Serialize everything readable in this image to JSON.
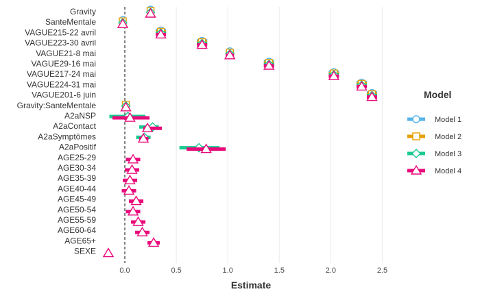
{
  "chart_data": {
    "type": "dot-whisker",
    "xlabel": "Estimate",
    "xlim": [
      -0.2,
      2.65
    ],
    "xticks": [
      0.0,
      0.5,
      1.0,
      1.5,
      2.0,
      2.5
    ],
    "xtick_labels": [
      "0.0",
      "0.5",
      "1.0",
      "1.5",
      "2.0",
      "2.5"
    ],
    "reference_line": 0,
    "legend": {
      "title": "Model",
      "position": "right"
    },
    "terms": [
      "Gravity",
      "SanteMentale",
      "VAGUE215-22 avril",
      "VAGUE223-30 avril",
      "VAGUE21-8 mai",
      "VAGUE29-16 mai",
      "VAGUE217-24 mai",
      "VAGUE224-31 mai",
      "VAGUE201-6 juin",
      "Gravity:SanteMentale",
      "A2aNSP",
      "A2aContact",
      "A2aSymptômes",
      "A2aPositif",
      "AGE25-29",
      "AGE30-34",
      "AGE35-39",
      "AGE40-44",
      "AGE45-49",
      "AGE50-54",
      "AGE55-59",
      "AGE60-64",
      "AGE65+",
      "SEXE"
    ],
    "series": [
      {
        "name": "Model 1",
        "color": "#56B4E9",
        "marker": "circle",
        "estimates": [
          0.25,
          -0.02,
          0.35,
          0.75,
          1.02,
          1.4,
          2.03,
          2.3,
          2.4,
          null,
          null,
          null,
          null,
          null,
          null,
          null,
          null,
          null,
          null,
          null,
          null,
          null,
          null,
          null
        ],
        "low": [
          0.23,
          -0.03,
          0.3,
          0.7,
          0.98,
          1.35,
          1.98,
          2.25,
          2.35,
          null,
          null,
          null,
          null,
          null,
          null,
          null,
          null,
          null,
          null,
          null,
          null,
          null,
          null,
          null
        ],
        "high": [
          0.27,
          -0.01,
          0.4,
          0.8,
          1.06,
          1.45,
          2.08,
          2.35,
          2.45,
          null,
          null,
          null,
          null,
          null,
          null,
          null,
          null,
          null,
          null,
          null,
          null,
          null,
          null,
          null
        ]
      },
      {
        "name": "Model 2",
        "color": "#E69F00",
        "marker": "square",
        "estimates": [
          0.25,
          -0.02,
          0.35,
          0.75,
          1.02,
          1.4,
          2.03,
          2.3,
          2.4,
          0.01,
          null,
          null,
          null,
          null,
          null,
          null,
          null,
          null,
          null,
          null,
          null,
          null,
          null,
          null
        ],
        "low": [
          0.23,
          -0.03,
          0.3,
          0.7,
          0.98,
          1.35,
          1.98,
          2.25,
          2.35,
          -0.01,
          null,
          null,
          null,
          null,
          null,
          null,
          null,
          null,
          null,
          null,
          null,
          null,
          null,
          null
        ],
        "high": [
          0.27,
          -0.01,
          0.4,
          0.8,
          1.06,
          1.45,
          2.08,
          2.35,
          2.45,
          0.02,
          null,
          null,
          null,
          null,
          null,
          null,
          null,
          null,
          null,
          null,
          null,
          null,
          null,
          null
        ]
      },
      {
        "name": "Model 3",
        "color": "#1AC991",
        "marker": "diamond",
        "estimates": [
          0.25,
          -0.02,
          0.35,
          0.75,
          1.02,
          1.4,
          2.03,
          2.3,
          2.4,
          0.01,
          0.03,
          0.27,
          0.19,
          0.72,
          null,
          null,
          null,
          null,
          null,
          null,
          null,
          null,
          null,
          null
        ],
        "low": [
          0.23,
          -0.03,
          0.3,
          0.7,
          0.98,
          1.35,
          1.98,
          2.25,
          2.35,
          -0.01,
          -0.15,
          0.14,
          0.11,
          0.53,
          null,
          null,
          null,
          null,
          null,
          null,
          null,
          null,
          null,
          null
        ],
        "high": [
          0.27,
          -0.01,
          0.4,
          0.8,
          1.06,
          1.45,
          2.08,
          2.35,
          2.45,
          0.02,
          0.2,
          0.33,
          0.25,
          0.92,
          null,
          null,
          null,
          null,
          null,
          null,
          null,
          null,
          null,
          null
        ]
      },
      {
        "name": "Model 4",
        "color": "#E8097A",
        "marker": "triangle",
        "estimates": [
          0.25,
          -0.02,
          0.35,
          0.75,
          1.02,
          1.4,
          2.03,
          2.3,
          2.4,
          0.01,
          0.05,
          0.22,
          0.18,
          0.79,
          0.08,
          0.07,
          0.05,
          0.04,
          0.11,
          0.08,
          0.13,
          0.17,
          0.28,
          -0.16
        ],
        "low": [
          0.23,
          -0.03,
          0.3,
          0.7,
          0.98,
          1.35,
          1.98,
          2.25,
          2.35,
          -0.01,
          -0.12,
          0.18,
          0.14,
          0.6,
          0.01,
          0.0,
          -0.02,
          -0.03,
          0.04,
          0.01,
          0.06,
          0.1,
          0.22,
          -0.18
        ],
        "high": [
          0.27,
          -0.01,
          0.4,
          0.8,
          1.06,
          1.45,
          2.08,
          2.35,
          2.45,
          0.02,
          0.24,
          0.36,
          0.23,
          0.98,
          0.15,
          0.14,
          0.12,
          0.11,
          0.18,
          0.15,
          0.2,
          0.24,
          0.34,
          -0.14
        ]
      }
    ]
  }
}
